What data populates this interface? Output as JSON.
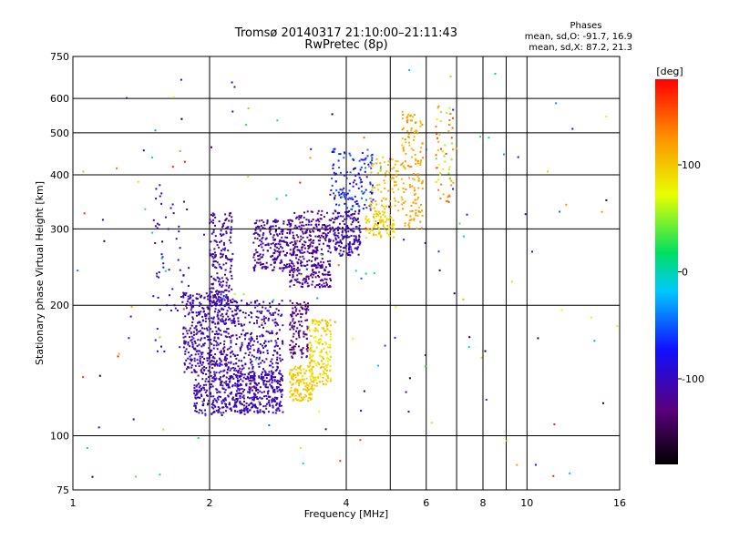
{
  "chart_data": {
    "type": "scatter",
    "title": "Tromsø 20140317 21:10:00–21:11:43",
    "subtitle": "RwPretec (8p)",
    "stats": {
      "heading": "Phases",
      "line1": "mean, sd,O: -91.7, 16.9",
      "line2": "mean, sd,X:  87.2, 21.3"
    },
    "xlabel": "Frequency [MHz]",
    "ylabel": "Stationary phase Virtual Height [km]",
    "x_scale": "log",
    "y_scale": "log",
    "xlim": [
      1,
      16
    ],
    "ylim": [
      75,
      750
    ],
    "x_ticks": [
      1,
      2,
      4,
      6,
      8,
      10,
      16
    ],
    "x_tick_labels": [
      "1",
      "2",
      "4",
      "6",
      "8",
      "10",
      "16"
    ],
    "x_grid": [
      2,
      4,
      6,
      8,
      10
    ],
    "x_minor_grid": [
      5,
      7,
      9
    ],
    "y_ticks": [
      75,
      100,
      200,
      300,
      400,
      500,
      600,
      750
    ],
    "y_tick_labels": [
      "75",
      "100",
      "200",
      "300",
      "400",
      "500",
      "600",
      "750"
    ],
    "y_grid": [
      100,
      200,
      300,
      400,
      500,
      600
    ],
    "grid": true,
    "colorbar": {
      "label": "[deg]",
      "min": -180,
      "max": 180,
      "ticks": [
        100,
        0,
        -100
      ],
      "tick_labels": [
        "100",
        "0",
        "-100"
      ],
      "colormap": "black-purple-blue-cyan-green-yellow-red"
    },
    "point_colors": {
      "o_mode": "#1a3fe0",
      "x_mode": "#e0e020"
    },
    "clusters": [
      {
        "x": [
          1.85,
          2.9
        ],
        "y": [
          112,
          140
        ],
        "phase": [
          -115,
          -95
        ],
        "n": 500
      },
      {
        "x": [
          1.75,
          2.2
        ],
        "y": [
          140,
          215
        ],
        "phase": [
          -120,
          -95
        ],
        "n": 420
      },
      {
        "x": [
          2.2,
          2.9
        ],
        "y": [
          130,
          205
        ],
        "phase": [
          -115,
          -95
        ],
        "n": 340
      },
      {
        "x": [
          2.0,
          2.25
        ],
        "y": [
          200,
          330
        ],
        "phase": [
          -120,
          -95
        ],
        "n": 180
      },
      {
        "x": [
          2.5,
          3.0
        ],
        "y": [
          240,
          315
        ],
        "phase": [
          -125,
          -100
        ],
        "n": 210
      },
      {
        "x": [
          3.0,
          3.3
        ],
        "y": [
          150,
          205
        ],
        "phase": [
          -140,
          -115
        ],
        "n": 110
      },
      {
        "x": [
          3.0,
          3.7
        ],
        "y": [
          220,
          330
        ],
        "phase": [
          -130,
          -105
        ],
        "n": 380
      },
      {
        "x": [
          3.7,
          4.3
        ],
        "y": [
          260,
          330
        ],
        "phase": [
          -115,
          -95
        ],
        "n": 170
      },
      {
        "x": [
          3.7,
          4.6
        ],
        "y": [
          330,
          460
        ],
        "phase": [
          -100,
          -40
        ],
        "n": 140
      },
      {
        "x": [
          3.0,
          3.4
        ],
        "y": [
          120,
          145
        ],
        "phase": [
          85,
          110
        ],
        "n": 130
      },
      {
        "x": [
          3.3,
          3.7
        ],
        "y": [
          130,
          185
        ],
        "phase": [
          70,
          110
        ],
        "n": 170
      },
      {
        "x": [
          4.4,
          5.1
        ],
        "y": [
          285,
          330
        ],
        "phase": [
          80,
          105
        ],
        "n": 90
      },
      {
        "x": [
          4.5,
          5.3
        ],
        "y": [
          330,
          440
        ],
        "phase": [
          90,
          120
        ],
        "n": 80
      },
      {
        "x": [
          5.3,
          5.9
        ],
        "y": [
          300,
          560
        ],
        "phase": [
          100,
          130
        ],
        "n": 140
      },
      {
        "x": [
          6.3,
          6.9
        ],
        "y": [
          330,
          620
        ],
        "phase": [
          40,
          160
        ],
        "n": 60
      },
      {
        "x": [
          1.5,
          1.8
        ],
        "y": [
          150,
          380
        ],
        "phase": [
          -110,
          -90
        ],
        "n": 60
      },
      {
        "x": [
          1.0,
          16.0
        ],
        "y": [
          80,
          700
        ],
        "phase": [
          -180,
          180
        ],
        "n": 160
      }
    ]
  }
}
